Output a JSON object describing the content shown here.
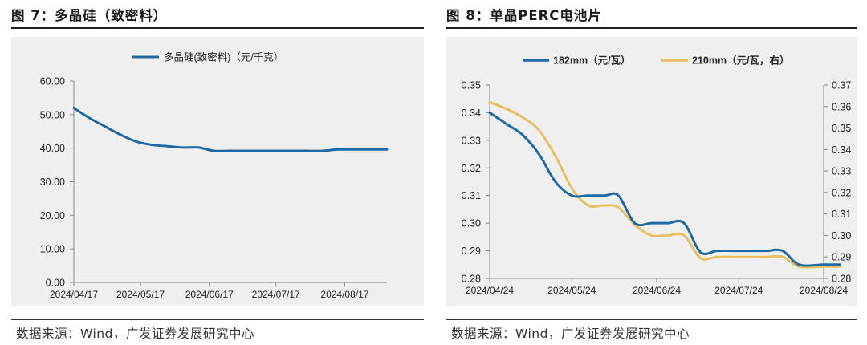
{
  "charts": [
    {
      "figure_title": "图 7：多晶硅（致密料）",
      "source": "数据来源：Wind，广发证券发展研究中心",
      "colors": {
        "line": "#1d6aa5",
        "axis": "#888888",
        "plot_bg": "#efefef"
      },
      "chart_data": {
        "type": "line",
        "legend": "top-center",
        "grid": false,
        "x_type": "date",
        "x_range": [
          "2024-04-17",
          "2024-09-05"
        ],
        "x_ticks": [
          "2024-04-17",
          "2024-05-17",
          "2024-06-17",
          "2024-07-17",
          "2024-08-17"
        ],
        "x_tick_labels": [
          "2024/04/17",
          "2024/05/17",
          "2024/06/17",
          "2024/07/17",
          "2024/08/17"
        ],
        "ylim": [
          0,
          60
        ],
        "y_ticks": [
          0,
          10,
          20,
          30,
          40,
          50,
          60
        ],
        "y_tick_labels": [
          "0.00",
          "10.00",
          "20.00",
          "30.00",
          "40.00",
          "50.00",
          "60.00"
        ],
        "series": [
          {
            "name": "多晶硅(致密料)（元/千克）",
            "color": "#1d6aa5",
            "x": [
              "2024-04-17",
              "2024-04-24",
              "2024-05-01",
              "2024-05-08",
              "2024-05-15",
              "2024-05-22",
              "2024-05-29",
              "2024-06-05",
              "2024-06-12",
              "2024-06-19",
              "2024-06-26",
              "2024-07-03",
              "2024-07-10",
              "2024-07-17",
              "2024-07-24",
              "2024-07-31",
              "2024-08-07",
              "2024-08-14",
              "2024-08-21",
              "2024-08-28",
              "2024-09-05"
            ],
            "y": [
              52.0,
              49.0,
              46.5,
              44.0,
              42.0,
              41.0,
              40.6,
              40.2,
              40.2,
              39.2,
              39.2,
              39.2,
              39.2,
              39.2,
              39.2,
              39.2,
              39.2,
              39.6,
              39.6,
              39.6,
              39.6
            ]
          }
        ]
      }
    },
    {
      "figure_title": "图 8：单晶PERC电池片",
      "source": "数据来源：Wind，广发证券发展研究中心",
      "colors": {
        "series1": "#1d6aa5",
        "series2": "#e8c15e",
        "axis": "#888888",
        "plot_bg": "#efefef"
      },
      "chart_data": {
        "type": "line",
        "legend": "top-center",
        "grid": false,
        "x_type": "date",
        "x_range": [
          "2024-04-24",
          "2024-08-24"
        ],
        "x_ticks": [
          "2024-04-24",
          "2024-05-24",
          "2024-06-24",
          "2024-07-24",
          "2024-08-24"
        ],
        "x_tick_labels": [
          "2024/04/24",
          "2024/05/24",
          "2024/06/24",
          "2024/07/24",
          "2024/08/24"
        ],
        "ylim_left": [
          0.28,
          0.35
        ],
        "y_ticks_left": [
          0.28,
          0.29,
          0.3,
          0.31,
          0.32,
          0.33,
          0.34,
          0.35
        ],
        "y_tick_labels_left": [
          "0.28",
          "0.29",
          "0.30",
          "0.31",
          "0.32",
          "0.33",
          "0.34",
          "0.35"
        ],
        "ylim_right": [
          0.28,
          0.37
        ],
        "y_ticks_right": [
          0.28,
          0.29,
          0.3,
          0.31,
          0.32,
          0.33,
          0.34,
          0.35,
          0.36,
          0.37
        ],
        "y_tick_labels_right": [
          "0.28",
          "0.29",
          "0.30",
          "0.31",
          "0.32",
          "0.33",
          "0.34",
          "0.35",
          "0.36",
          "0.37"
        ],
        "series": [
          {
            "name": "182mm（元/瓦）",
            "axis": "left",
            "color": "#1d6aa5",
            "x": [
              "2024-04-24",
              "2024-04-30",
              "2024-05-06",
              "2024-05-12",
              "2024-05-18",
              "2024-05-24",
              "2024-05-30",
              "2024-06-05",
              "2024-06-10",
              "2024-06-16",
              "2024-06-22",
              "2024-06-28",
              "2024-07-04",
              "2024-07-10",
              "2024-07-16",
              "2024-07-22",
              "2024-07-28",
              "2024-08-03",
              "2024-08-09",
              "2024-08-15",
              "2024-08-24",
              "2024-08-30"
            ],
            "y": [
              0.34,
              0.336,
              0.332,
              0.325,
              0.315,
              0.31,
              0.31,
              0.31,
              0.31,
              0.3,
              0.3,
              0.3,
              0.3,
              0.2895,
              0.29,
              0.29,
              0.29,
              0.29,
              0.29,
              0.285,
              0.285,
              0.285
            ]
          },
          {
            "name": "210mm（元/瓦，右）",
            "axis": "right",
            "color": "#e8c15e",
            "x": [
              "2024-04-24",
              "2024-04-30",
              "2024-05-06",
              "2024-05-12",
              "2024-05-18",
              "2024-05-24",
              "2024-05-30",
              "2024-06-05",
              "2024-06-10",
              "2024-06-16",
              "2024-06-22",
              "2024-06-28",
              "2024-07-04",
              "2024-07-10",
              "2024-07-16",
              "2024-07-22",
              "2024-07-28",
              "2024-08-03",
              "2024-08-09",
              "2024-08-15",
              "2024-08-24",
              "2024-08-30"
            ],
            "y": [
              0.362,
              0.359,
              0.355,
              0.349,
              0.337,
              0.322,
              0.314,
              0.314,
              0.313,
              0.305,
              0.3,
              0.3,
              0.3,
              0.2895,
              0.29,
              0.29,
              0.29,
              0.29,
              0.29,
              0.2855,
              0.2855,
              0.2855
            ]
          }
        ]
      }
    }
  ]
}
